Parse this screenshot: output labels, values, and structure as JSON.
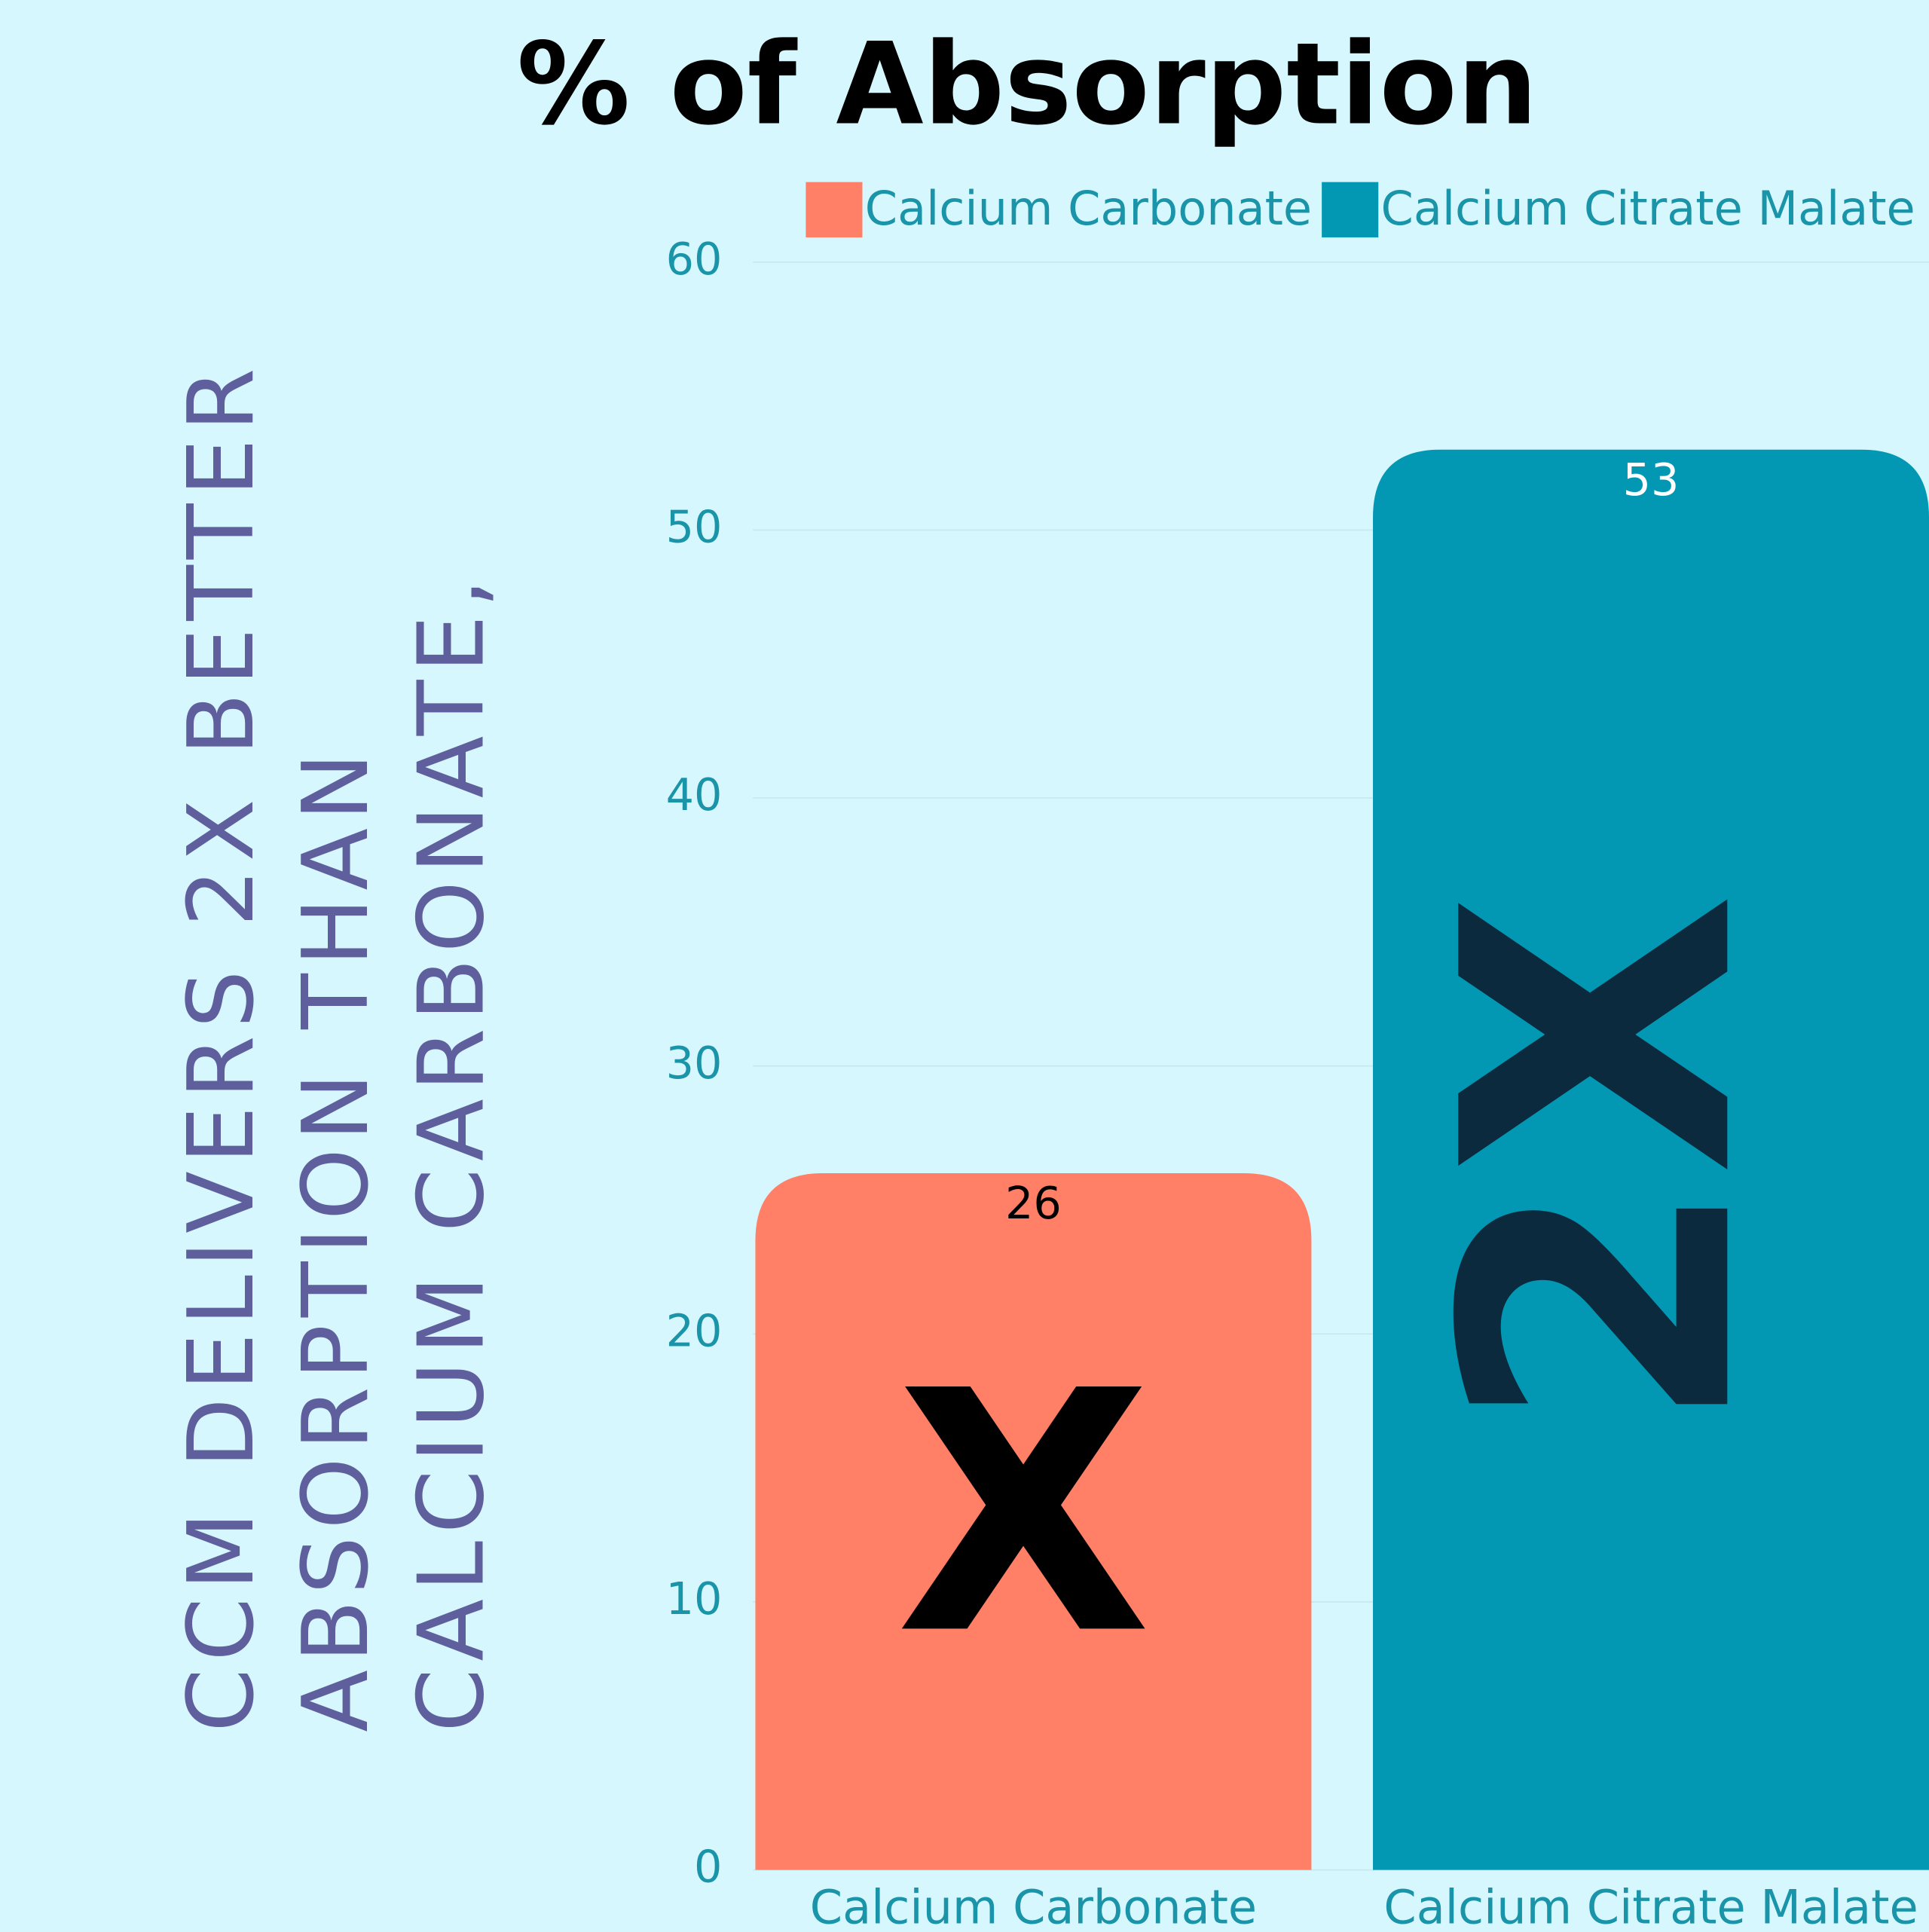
{
  "chart_data": {
    "type": "bar",
    "title": "% of Absorption",
    "categories": [
      "Calcium Carbonate",
      "Calcium Citrate Malate"
    ],
    "series": [
      {
        "name": "Calcium Carbonate",
        "color": "#ff7f67",
        "values": [
          26,
          null
        ]
      },
      {
        "name": "Calcium Citrate Malate",
        "color": "#0298b3",
        "values": [
          null,
          53
        ]
      }
    ],
    "ylim": [
      0,
      60
    ],
    "yticks": [
      0,
      10,
      20,
      30,
      40,
      50,
      60
    ],
    "grid": true,
    "legend": "top",
    "bar_annotations": [
      "X",
      "2X"
    ],
    "side_text": [
      "CCM DELIVERS 2X BETTER",
      "ABSORPTION THAN",
      "CALCIUM CARBONATE,"
    ]
  }
}
